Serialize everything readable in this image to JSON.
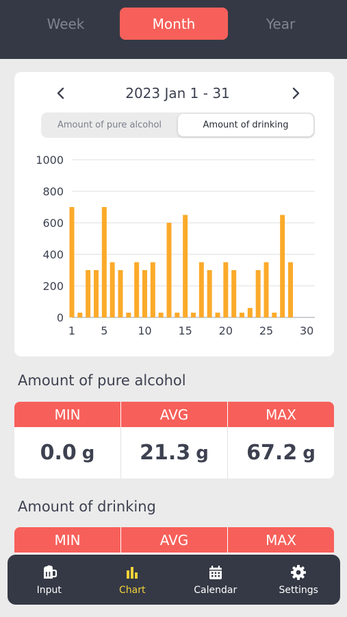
{
  "period_tabs": [
    {
      "label": "Week"
    },
    {
      "label": "Month"
    },
    {
      "label": "Year"
    }
  ],
  "period": {
    "label": "2023 Jan 1 - 31",
    "prev_icon": "chevron-left-icon",
    "next_icon": "chevron-right-icon"
  },
  "metric_toggle": {
    "options": [
      "Amount of pure alcohol",
      "Amount of drinking"
    ],
    "selected": "Amount of drinking"
  },
  "chart_data": {
    "type": "bar",
    "x": [
      1,
      2,
      3,
      4,
      5,
      6,
      7,
      8,
      9,
      10,
      11,
      12,
      13,
      14,
      15,
      16,
      17,
      18,
      19,
      20,
      21,
      22,
      23,
      24,
      25,
      26,
      27,
      28
    ],
    "values": [
      700,
      30,
      300,
      300,
      700,
      350,
      300,
      30,
      350,
      300,
      350,
      30,
      600,
      30,
      650,
      30,
      350,
      300,
      30,
      350,
      300,
      30,
      60,
      300,
      350,
      30,
      650,
      350
    ],
    "ylim": [
      0,
      1000
    ],
    "xlim": [
      1,
      31
    ],
    "yticks": [
      "0",
      "200",
      "400",
      "600",
      "800",
      "1000"
    ],
    "xticks": [
      "1",
      "5",
      "10",
      "15",
      "20",
      "25",
      "30"
    ],
    "grid": true,
    "bar_color": "#fbaa2a"
  },
  "pure_alcohol": {
    "title": "Amount of pure alcohol",
    "headers": [
      "MIN",
      "AVG",
      "MAX"
    ],
    "values": [
      "0.0",
      "21.3",
      "67.2"
    ],
    "unit": "g"
  },
  "drinking": {
    "title": "Amount of drinking",
    "headers": [
      "MIN",
      "AVG",
      "MAX"
    ]
  },
  "bottom_nav": [
    {
      "label": "Input",
      "icon": "beer-mug-icon"
    },
    {
      "label": "Chart",
      "icon": "bar-chart-icon"
    },
    {
      "label": "Calendar",
      "icon": "calendar-icon"
    },
    {
      "label": "Settings",
      "icon": "gear-icon"
    }
  ],
  "colors": {
    "accent": "#f7605a",
    "dark": "#353945",
    "active_nav": "#f2d23a"
  }
}
